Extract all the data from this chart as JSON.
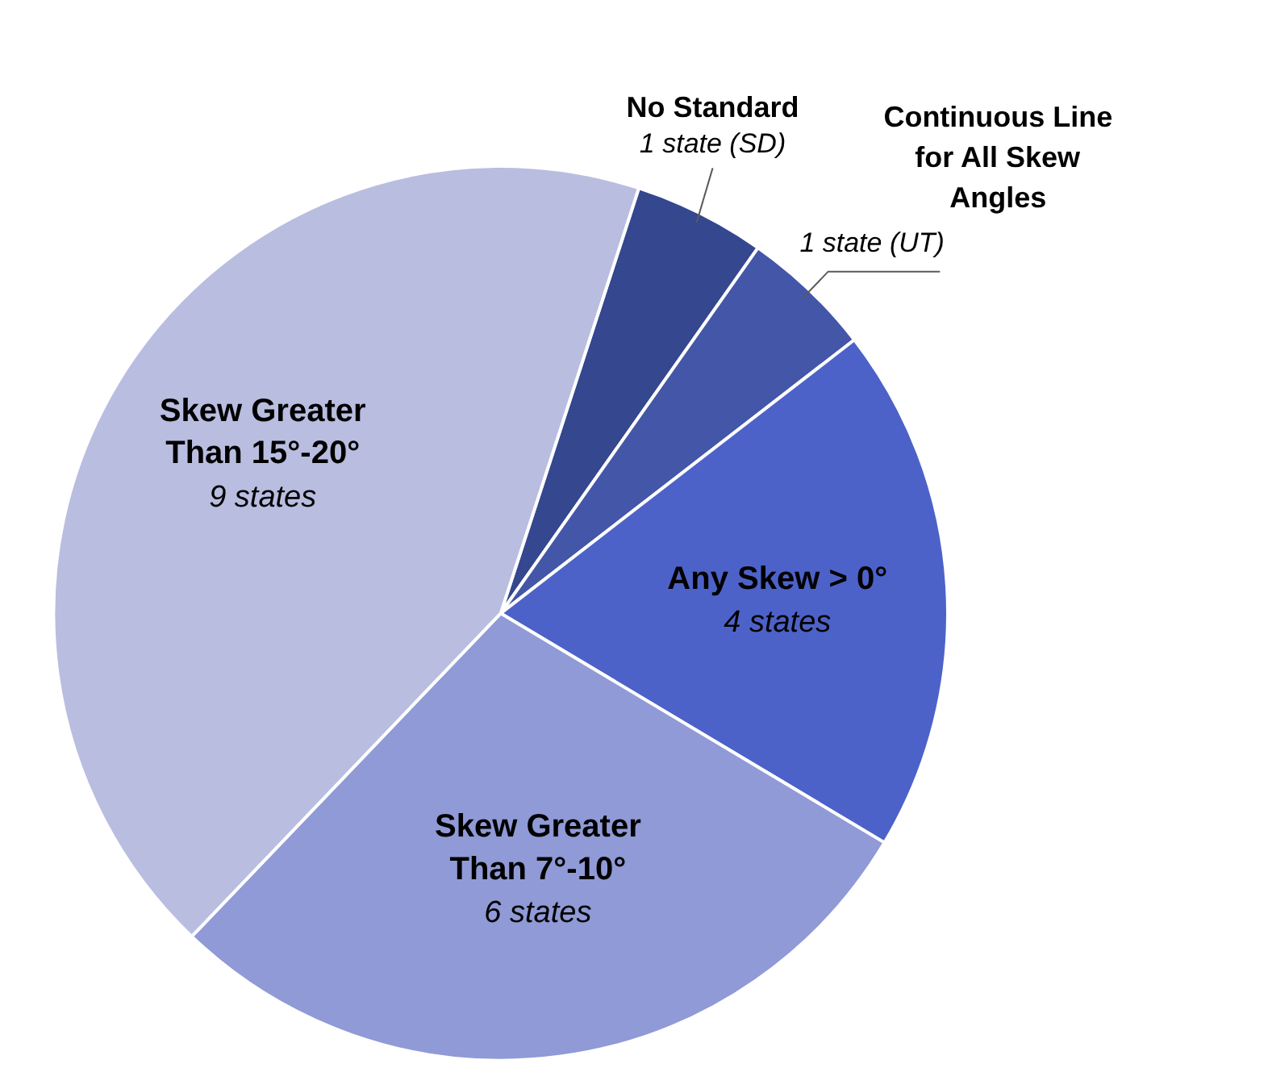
{
  "chart_data": {
    "type": "pie",
    "categories": [
      "No Standard",
      "Continuous Line\nfor All Skew\nAngles",
      "Any Skew > 0°",
      "Skew Greater\nThan 7°-10°",
      "Skew Greater\nThan 15°-20°"
    ],
    "values": [
      1,
      1,
      4,
      6,
      9
    ],
    "colors": [
      "#34478f",
      "#4356a8",
      "#4d62c8",
      "#8f9ad6",
      "#b9bde0"
    ],
    "value_labels": [
      "1 state (SD)",
      "1 state (UT)",
      "4 states",
      "6 states",
      "9 states"
    ]
  }
}
